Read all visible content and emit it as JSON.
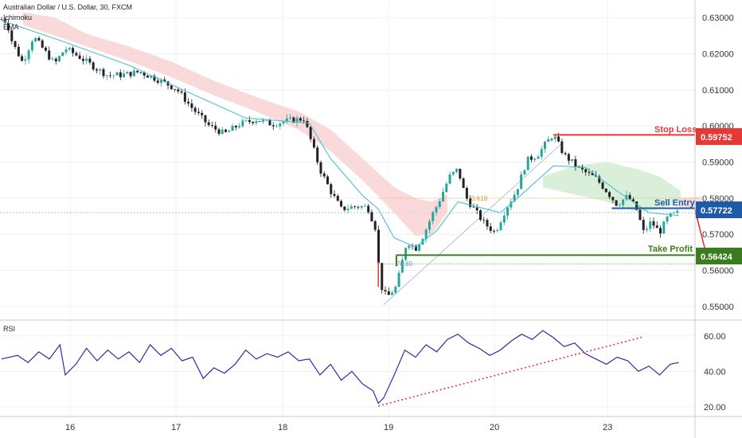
{
  "header": {
    "title": "Australian Dollar / U.S. Dollar, 30, FXCM",
    "indicator_1": "Ichimoku",
    "indicator_2": "EMA"
  },
  "rsi_label": "RSI",
  "colors": {
    "bull": "#26a69a",
    "bear": "#222222",
    "stop_loss": "#e53935",
    "sell_entry": "#1e5aa8",
    "take_profit": "#3a7d1f",
    "ema": "#4dc1d2",
    "cloud_bear": "#f7cfcf",
    "cloud_bull": "#d4ecd4",
    "rsi": "#2630a6",
    "rsi_trend": "#e53935"
  },
  "levels": {
    "stop_loss": {
      "label": "Stop Loss",
      "value": "0.59752"
    },
    "sell_entry": {
      "label": "Sell Entry",
      "value": "0.57722"
    },
    "take_profit": {
      "label": "Take Profit",
      "value": "0.56424"
    }
  },
  "fib_labels": {
    "upper": "0.618",
    "lower": "78.60"
  },
  "chart_data": [
    {
      "type": "candlestick",
      "title": "Australian Dollar / U.S. Dollar, 30, FXCM",
      "x_tick_labels": [
        "16",
        "17",
        "18",
        "19",
        "20",
        "23"
      ],
      "y_tick_labels": [
        "0.63000",
        "0.62000",
        "0.61000",
        "0.60000",
        "0.59000",
        "0.58000",
        "0.57000",
        "0.56000",
        "0.55000"
      ],
      "ylim": [
        0.548,
        0.634
      ],
      "price_path": [
        [
          0,
          0.6295
        ],
        [
          0.05,
          0.6288
        ],
        [
          0.1,
          0.6232
        ],
        [
          0.2,
          0.6175
        ],
        [
          0.3,
          0.6248
        ],
        [
          0.4,
          0.621
        ],
        [
          0.5,
          0.6172
        ],
        [
          0.6,
          0.6215
        ],
        [
          0.75,
          0.6188
        ],
        [
          0.9,
          0.6158
        ],
        [
          1.0,
          0.614
        ],
        [
          1.15,
          0.6142
        ],
        [
          1.3,
          0.615
        ],
        [
          1.5,
          0.6125
        ],
        [
          1.65,
          0.6102
        ],
        [
          1.8,
          0.6048
        ],
        [
          1.95,
          0.6002
        ],
        [
          2.1,
          0.5978
        ],
        [
          2.25,
          0.6006
        ],
        [
          2.4,
          0.6018
        ],
        [
          2.55,
          0.6005
        ],
        [
          2.7,
          0.6015
        ],
        [
          2.85,
          0.602
        ],
        [
          3.0,
          0.588
        ],
        [
          3.1,
          0.582
        ],
        [
          3.2,
          0.577
        ],
        [
          3.35,
          0.5778
        ],
        [
          3.45,
          0.5775
        ],
        [
          3.52,
          0.572
        ],
        [
          3.57,
          0.556
        ],
        [
          3.63,
          0.5525
        ],
        [
          3.72,
          0.5555
        ],
        [
          3.82,
          0.5682
        ],
        [
          3.9,
          0.566
        ],
        [
          3.98,
          0.57
        ],
        [
          4.05,
          0.575
        ],
        [
          4.12,
          0.579
        ],
        [
          4.22,
          0.586
        ],
        [
          4.3,
          0.588
        ],
        [
          4.37,
          0.5805
        ],
        [
          4.45,
          0.577
        ],
        [
          4.55,
          0.573
        ],
        [
          4.65,
          0.5705
        ],
        [
          4.75,
          0.577
        ],
        [
          4.85,
          0.582
        ],
        [
          4.95,
          0.5905
        ],
        [
          5.05,
          0.592
        ],
        [
          5.15,
          0.596
        ],
        [
          5.2,
          0.5975
        ],
        [
          5.3,
          0.592
        ],
        [
          5.45,
          0.588
        ],
        [
          5.6,
          0.5855
        ],
        [
          5.7,
          0.582
        ],
        [
          5.8,
          0.5782
        ],
        [
          5.85,
          0.5795
        ],
        [
          5.9,
          0.5805
        ],
        [
          5.98,
          0.5772
        ],
        [
          6.05,
          0.5705
        ],
        [
          6.12,
          0.5735
        ],
        [
          6.2,
          0.5705
        ],
        [
          6.28,
          0.5748
        ],
        [
          6.38,
          0.576
        ]
      ],
      "ema_path": [
        [
          0,
          0.6292
        ],
        [
          0.6,
          0.6232
        ],
        [
          1.2,
          0.6168
        ],
        [
          1.8,
          0.6088
        ],
        [
          2.3,
          0.6022
        ],
        [
          2.9,
          0.6008
        ],
        [
          3.1,
          0.591
        ],
        [
          3.4,
          0.5808
        ],
        [
          3.55,
          0.577
        ],
        [
          3.7,
          0.569
        ],
        [
          3.9,
          0.5665
        ],
        [
          4.1,
          0.571
        ],
        [
          4.3,
          0.579
        ],
        [
          4.5,
          0.5775
        ],
        [
          4.7,
          0.576
        ],
        [
          4.9,
          0.581
        ],
        [
          5.2,
          0.589
        ],
        [
          5.5,
          0.5885
        ],
        [
          5.8,
          0.582
        ],
        [
          6.1,
          0.576
        ],
        [
          6.38,
          0.5752
        ]
      ],
      "stop_loss": 0.59752,
      "sell_entry": 0.57722,
      "take_profit": 0.56424,
      "fib_upper": 0.58,
      "fib_lower": 0.5618,
      "last_price": 0.576,
      "swing_high": 0.5975,
      "swing_low": 0.5505
    },
    {
      "type": "line",
      "title": "RSI",
      "y_tick_labels": [
        "60.00",
        "40.00",
        "20.00"
      ],
      "ylim": [
        15,
        68
      ],
      "values": [
        [
          0,
          47
        ],
        [
          0.15,
          49
        ],
        [
          0.25,
          45
        ],
        [
          0.35,
          51
        ],
        [
          0.45,
          47
        ],
        [
          0.55,
          55
        ],
        [
          0.6,
          38
        ],
        [
          0.7,
          44
        ],
        [
          0.8,
          53
        ],
        [
          0.9,
          46
        ],
        [
          1.0,
          52
        ],
        [
          1.1,
          47
        ],
        [
          1.2,
          51
        ],
        [
          1.3,
          45
        ],
        [
          1.4,
          55
        ],
        [
          1.5,
          49
        ],
        [
          1.6,
          53
        ],
        [
          1.7,
          46
        ],
        [
          1.8,
          48
        ],
        [
          1.9,
          36
        ],
        [
          2.0,
          42
        ],
        [
          2.1,
          39
        ],
        [
          2.2,
          44
        ],
        [
          2.3,
          52
        ],
        [
          2.4,
          47
        ],
        [
          2.5,
          50
        ],
        [
          2.6,
          48
        ],
        [
          2.7,
          51
        ],
        [
          2.8,
          46
        ],
        [
          2.9,
          47
        ],
        [
          3.0,
          38
        ],
        [
          3.1,
          44
        ],
        [
          3.2,
          35
        ],
        [
          3.3,
          40
        ],
        [
          3.4,
          33
        ],
        [
          3.5,
          29
        ],
        [
          3.55,
          22
        ],
        [
          3.6,
          25
        ],
        [
          3.7,
          38
        ],
        [
          3.8,
          52
        ],
        [
          3.9,
          48
        ],
        [
          4.0,
          55
        ],
        [
          4.1,
          51
        ],
        [
          4.2,
          58
        ],
        [
          4.3,
          61
        ],
        [
          4.4,
          56
        ],
        [
          4.5,
          53
        ],
        [
          4.6,
          49
        ],
        [
          4.7,
          52
        ],
        [
          4.8,
          57
        ],
        [
          4.9,
          61
        ],
        [
          5.0,
          58
        ],
        [
          5.1,
          63
        ],
        [
          5.2,
          59
        ],
        [
          5.3,
          54
        ],
        [
          5.4,
          56
        ],
        [
          5.5,
          50
        ],
        [
          5.6,
          47
        ],
        [
          5.7,
          44
        ],
        [
          5.8,
          48
        ],
        [
          5.9,
          46
        ],
        [
          6.0,
          40
        ],
        [
          6.1,
          43
        ],
        [
          6.2,
          38
        ],
        [
          6.3,
          44
        ],
        [
          6.38,
          45
        ]
      ],
      "trendline": [
        [
          3.55,
          20.5
        ],
        [
          6.05,
          59.5
        ]
      ]
    }
  ]
}
